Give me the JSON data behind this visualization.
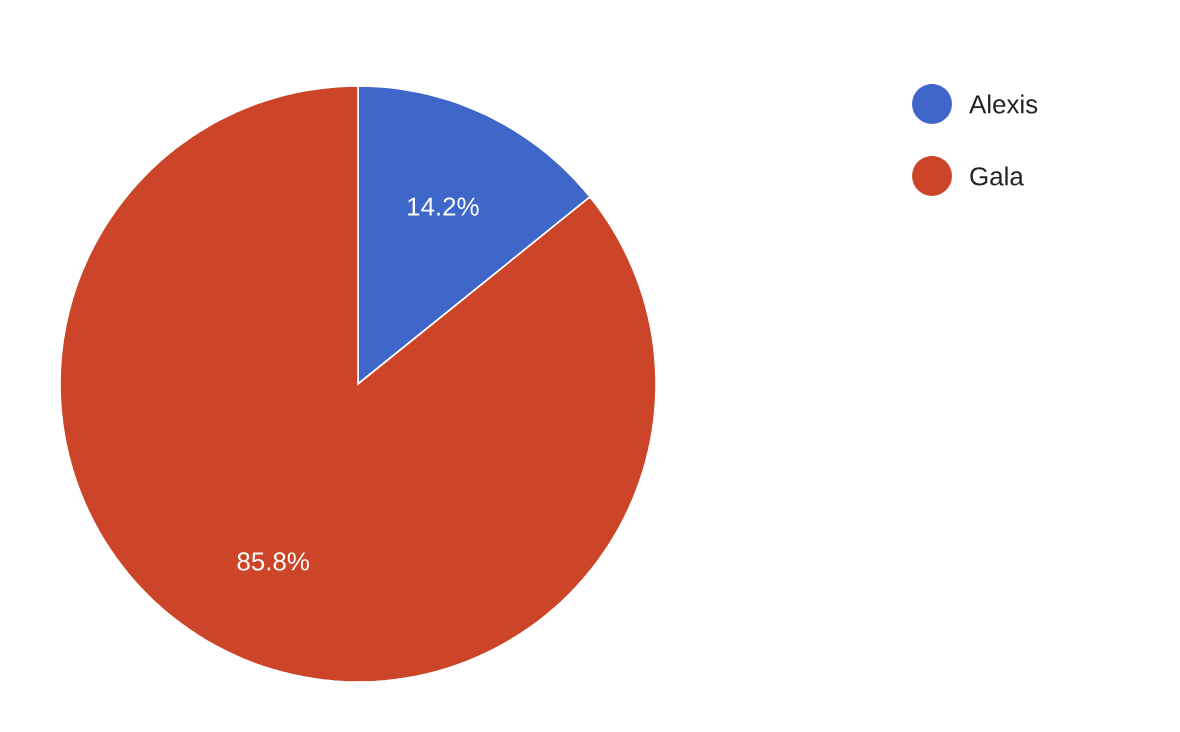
{
  "chart_data": {
    "type": "pie",
    "categories": [
      "Alexis",
      "Gala"
    ],
    "values": [
      14.2,
      85.8
    ],
    "value_labels": [
      "14.2%",
      "85.8%"
    ],
    "colors": [
      "#3f66c9",
      "#cc4529"
    ],
    "legend": "top right"
  }
}
